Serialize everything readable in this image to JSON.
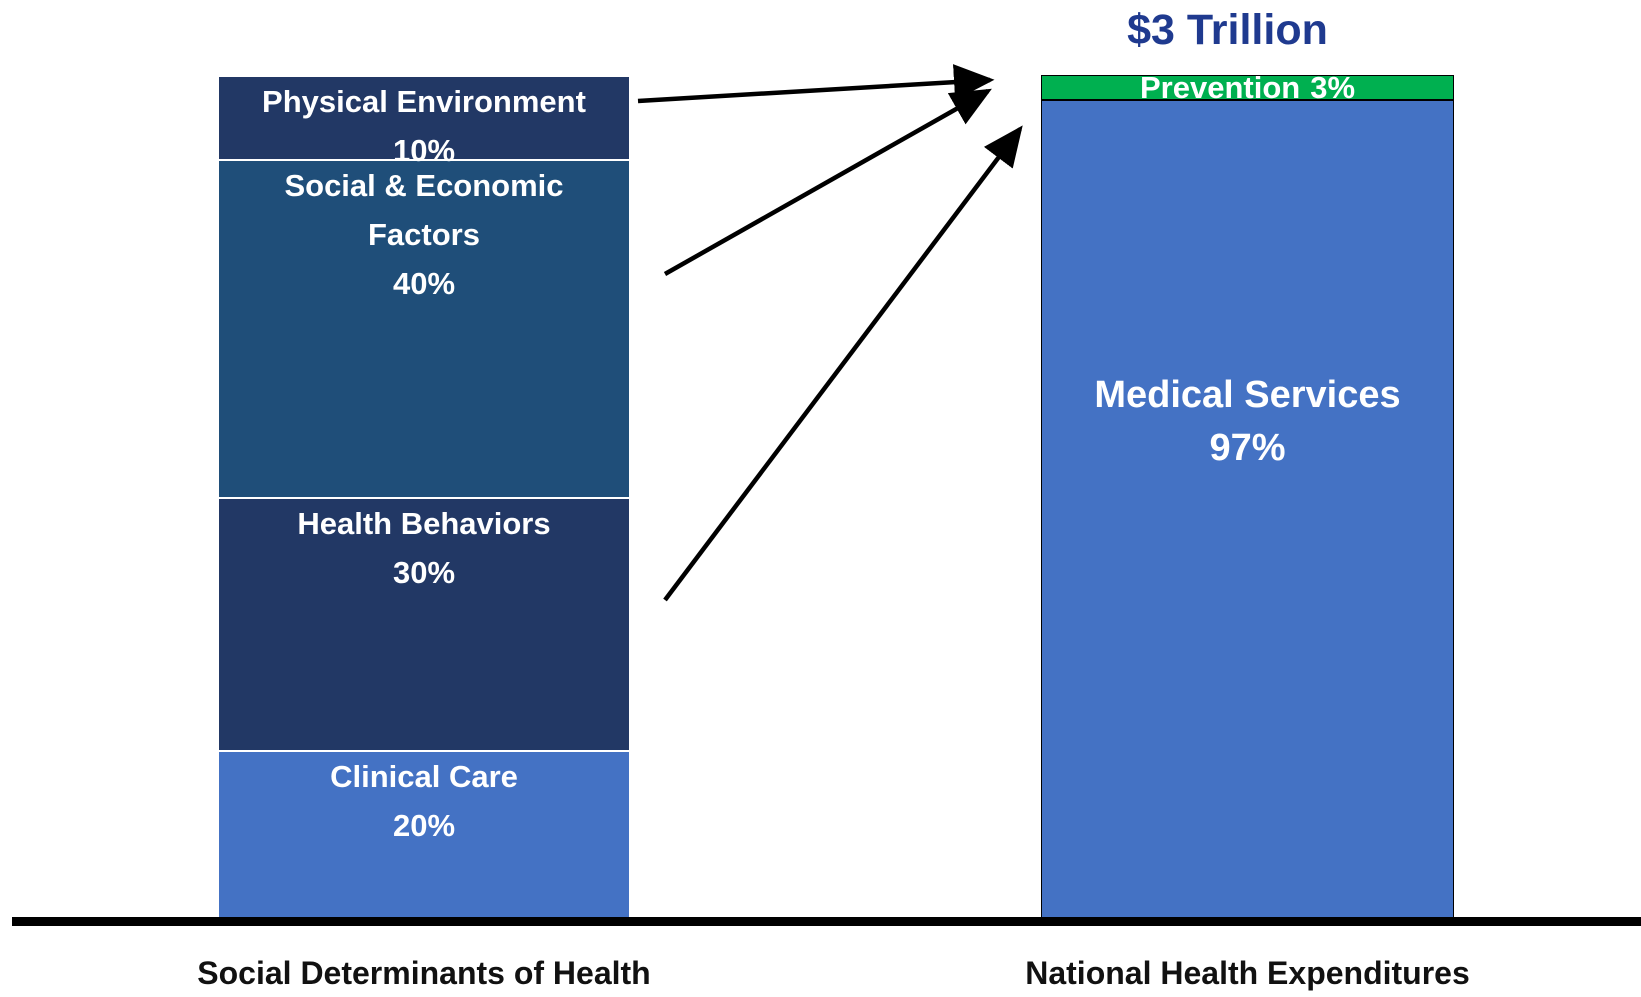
{
  "chart_data": {
    "type": "stacked_bar",
    "annotation": "$3 Trillion",
    "categories": [
      "Social Determinants of Health",
      "National Health Expenditures"
    ],
    "ylim": [
      0,
      100
    ],
    "series": [
      {
        "name": "Clinical Care",
        "color": "#4472c4",
        "values": [
          20,
          null
        ],
        "value_labels": [
          "20%",
          null
        ]
      },
      {
        "name": "Health Behaviors",
        "color": "#223865",
        "values": [
          30,
          null
        ],
        "value_labels": [
          "30%",
          null
        ]
      },
      {
        "name": "Social & Economic Factors",
        "color": "#1f4e79",
        "values": [
          40,
          null
        ],
        "value_labels": [
          "40%",
          null
        ]
      },
      {
        "name": "Physical Environment",
        "color": "#223865",
        "values": [
          10,
          null
        ],
        "value_labels": [
          "10%",
          null
        ]
      },
      {
        "name": "Medical Services",
        "color": "#4472c4",
        "values": [
          null,
          97
        ],
        "value_labels": [
          null,
          "97%"
        ]
      },
      {
        "name": "Prevention",
        "color": "#00b050",
        "values": [
          null,
          3
        ],
        "value_labels": [
          null,
          "3%"
        ]
      }
    ]
  }
}
